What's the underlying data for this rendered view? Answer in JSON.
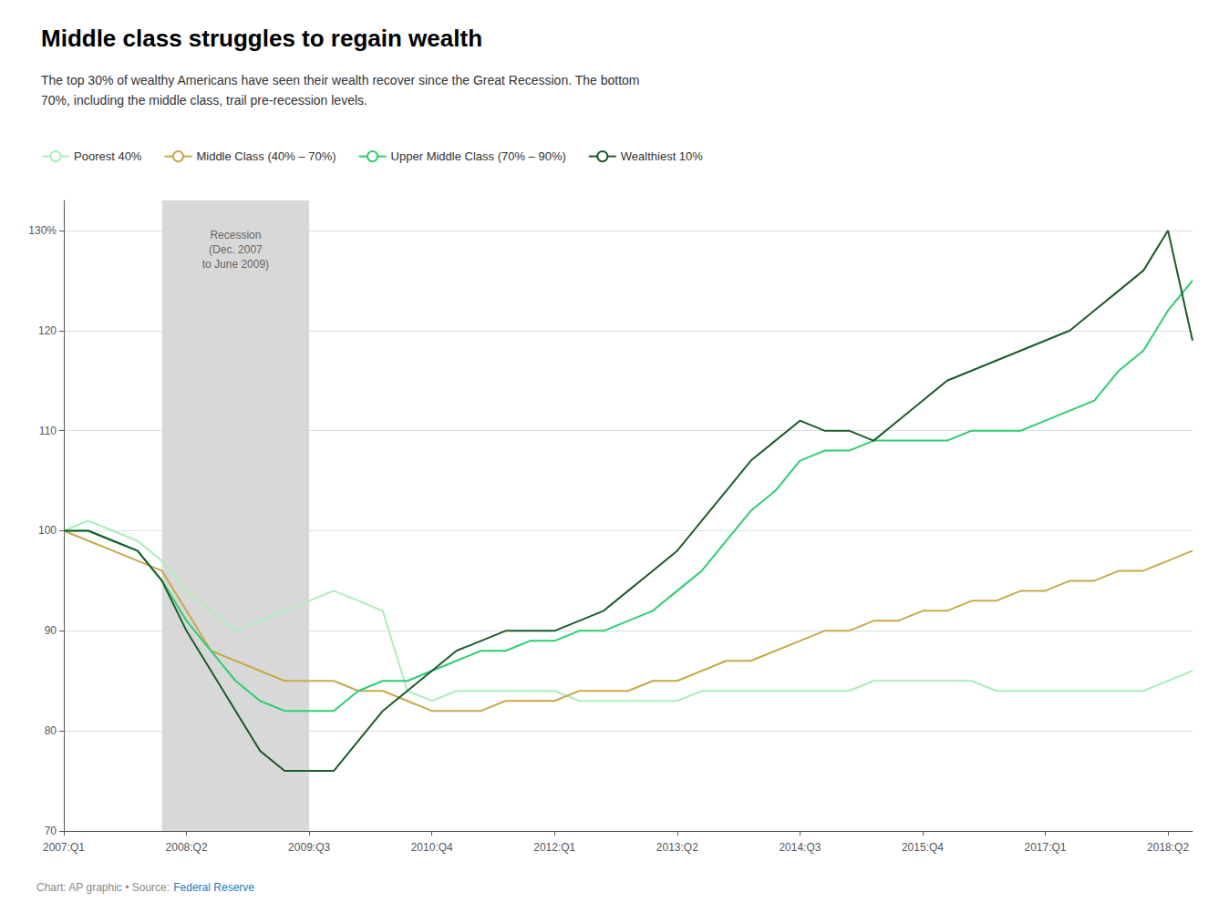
{
  "chart_data": {
    "type": "line",
    "title": "Middle class struggles to regain wealth",
    "subtitle": "The top 30% of wealthy Americans have seen their wealth recover since the Great Recession. The bottom\n70%, including the middle class, trail pre-recession levels.",
    "source": "Chart: AP graphic • Source: ",
    "source_link": "Federal Reserve",
    "categories": [
      "2007:Q1",
      null,
      null,
      null,
      null,
      "2008:Q2",
      null,
      null,
      null,
      null,
      "2009:Q3",
      null,
      null,
      null,
      null,
      "2010:Q4",
      null,
      null,
      null,
      null,
      "2012:Q1",
      null,
      null,
      null,
      null,
      "2013:Q2",
      null,
      null,
      null,
      null,
      "2014:Q3",
      null,
      null,
      null,
      null,
      "2015:Q4",
      null,
      null,
      null,
      null,
      "2017:Q1",
      null,
      null,
      null,
      null,
      "2018:Q2",
      null
    ],
    "series": [
      {
        "name": "Poorest 40%",
        "color": "#aaeebb",
        "values": [
          100,
          101,
          100,
          99,
          97,
          94,
          92,
          90,
          91,
          92,
          93,
          94,
          93,
          92,
          84,
          83,
          84,
          84,
          84,
          84,
          84,
          83,
          83,
          83,
          83,
          83,
          84,
          84,
          84,
          84,
          84,
          84,
          84,
          85,
          85,
          85,
          85,
          85,
          84,
          84,
          84,
          84,
          84,
          84,
          84,
          85,
          86
        ]
      },
      {
        "name": "Middle Class (40% – 70%)",
        "color": "#c8a84b",
        "values": [
          100,
          99,
          98,
          97,
          96,
          92,
          88,
          87,
          86,
          85,
          85,
          85,
          84,
          84,
          83,
          82,
          82,
          82,
          83,
          83,
          83,
          84,
          84,
          84,
          85,
          85,
          86,
          87,
          87,
          88,
          89,
          90,
          90,
          91,
          91,
          92,
          92,
          93,
          93,
          94,
          94,
          95,
          95,
          96,
          96,
          97,
          98
        ]
      },
      {
        "name": "Upper Middle Class (70% – 90%)",
        "color": "#2ecc71",
        "values": [
          100,
          100,
          99,
          98,
          95,
          91,
          88,
          85,
          83,
          82,
          82,
          82,
          84,
          85,
          85,
          86,
          87,
          88,
          88,
          89,
          89,
          90,
          90,
          91,
          92,
          94,
          96,
          99,
          102,
          104,
          107,
          108,
          108,
          109,
          109,
          109,
          109,
          110,
          110,
          110,
          111,
          112,
          113,
          116,
          118,
          122,
          125
        ]
      },
      {
        "name": "Wealthiest 10%",
        "color": "#1a5c2a",
        "values": [
          100,
          100,
          99,
          98,
          95,
          90,
          86,
          82,
          78,
          76,
          76,
          76,
          79,
          82,
          84,
          86,
          88,
          89,
          90,
          90,
          90,
          91,
          92,
          94,
          96,
          98,
          101,
          104,
          107,
          109,
          111,
          110,
          110,
          109,
          111,
          113,
          115,
          116,
          117,
          118,
          119,
          120,
          122,
          124,
          126,
          130,
          119
        ]
      }
    ],
    "ylim": [
      70,
      133
    ],
    "yticks": [
      70,
      80,
      90,
      100,
      110,
      120,
      {
        "value": 130,
        "label": "130%"
      }
    ],
    "grid": true,
    "legend": "upper left",
    "shaded_range": {
      "start": 4,
      "end": 10,
      "label": "Recession\n(Dec. 2007\nto June 2009)"
    }
  }
}
